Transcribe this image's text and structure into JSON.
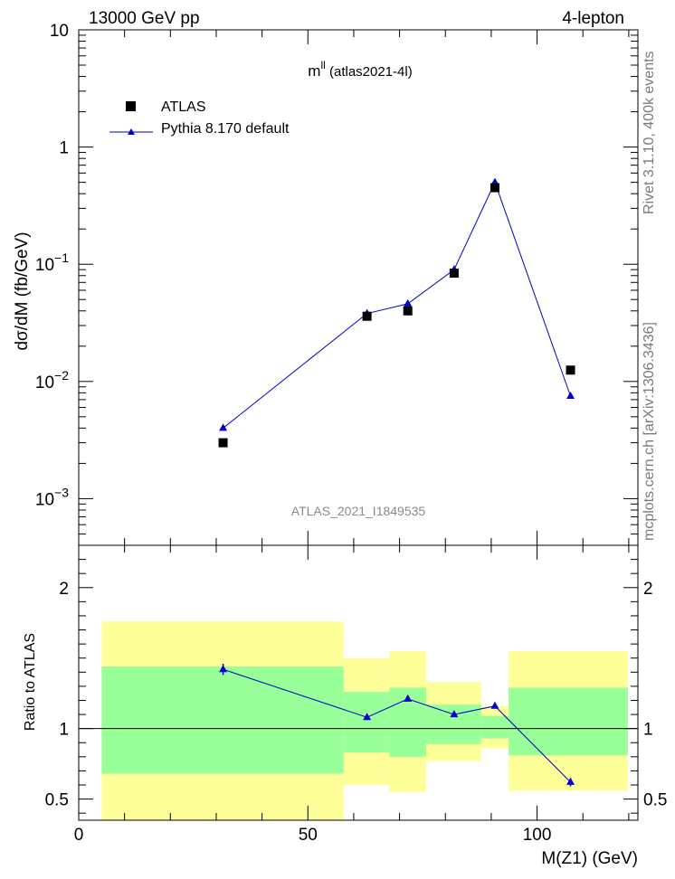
{
  "header": {
    "left": "13000 GeV pp",
    "right": "4-lepton"
  },
  "side_labels": {
    "rivet": "Rivet 3.1.10,  400k events",
    "mcplots": "mcplots.cern.ch [arXiv:1306.3436]"
  },
  "chart_data": [
    {
      "type": "scatter",
      "panel": "main",
      "title_main": "m",
      "title_sup": "ll",
      "title_rest": " (atlas2021-4l)",
      "ylabel": "dσ/dM (fb/GeV)",
      "watermark": "ATLAS_2021_I1849535",
      "yscale": "log",
      "ylim": [
        0.0004,
        10
      ],
      "xlim": [
        0,
        122
      ],
      "yticks": [
        {
          "v": 10,
          "base": "10",
          "exp": ""
        },
        {
          "v": 1,
          "base": "1",
          "exp": ""
        },
        {
          "v": 0.1,
          "base": "10",
          "exp": "−1"
        },
        {
          "v": 0.01,
          "base": "10",
          "exp": "−2"
        },
        {
          "v": 0.001,
          "base": "10",
          "exp": "−3"
        }
      ],
      "legend_position": "top-left",
      "series": [
        {
          "name": "ATLAS",
          "style": "square",
          "color": "#000000",
          "x": [
            31.5,
            62.9,
            71.8,
            81.9,
            90.8,
            107.3
          ],
          "y": [
            0.003,
            0.036,
            0.04,
            0.084,
            0.45,
            0.0125
          ]
        },
        {
          "name": "Pythia 8.170 default",
          "style": "triangle-line",
          "color": "#0000cc",
          "x": [
            31.5,
            62.9,
            71.8,
            81.9,
            90.8,
            107.3
          ],
          "y": [
            0.004,
            0.038,
            0.046,
            0.09,
            0.5,
            0.0075
          ]
        }
      ]
    },
    {
      "type": "line",
      "panel": "ratio",
      "ylabel": "Ratio to ATLAS",
      "xlabel": "M(Z1) (GeV)",
      "ylim": [
        0.35,
        2.3
      ],
      "xlim": [
        0,
        122
      ],
      "yticks": [
        0.5,
        1,
        2
      ],
      "yticklabels": [
        "0.5",
        "1",
        "2"
      ],
      "xticks": [
        0,
        50,
        100
      ],
      "xticklabels": [
        "0",
        "50",
        "100"
      ],
      "reference_line": 1,
      "bands": [
        {
          "x0": 5,
          "x1": 57.8,
          "yellow": [
            0.35,
            1.76
          ],
          "green": [
            0.68,
            1.44
          ]
        },
        {
          "x0": 57.8,
          "x1": 67.8,
          "yellow": [
            0.6,
            1.5
          ],
          "green": [
            0.83,
            1.26
          ]
        },
        {
          "x0": 67.8,
          "x1": 75.8,
          "yellow": [
            0.55,
            1.55
          ],
          "green": [
            0.8,
            1.29
          ]
        },
        {
          "x0": 75.8,
          "x1": 87.8,
          "yellow": [
            0.77,
            1.33
          ],
          "green": [
            0.89,
            1.17
          ]
        },
        {
          "x0": 87.8,
          "x1": 93.8,
          "yellow": [
            0.86,
            1.16
          ],
          "green": [
            0.93,
            1.09
          ]
        },
        {
          "x0": 93.8,
          "x1": 119.8,
          "yellow": [
            0.56,
            1.55
          ],
          "green": [
            0.81,
            1.29
          ]
        }
      ],
      "series": [
        {
          "name": "Pythia 8.170 default",
          "color": "#0000cc",
          "x": [
            31.5,
            62.9,
            71.8,
            81.9,
            90.8,
            107.3
          ],
          "y": [
            1.42,
            1.08,
            1.21,
            1.1,
            1.16,
            0.62
          ],
          "err": [
            0.04,
            0.015,
            0.015,
            0.015,
            0.01,
            0.03
          ]
        }
      ]
    }
  ]
}
